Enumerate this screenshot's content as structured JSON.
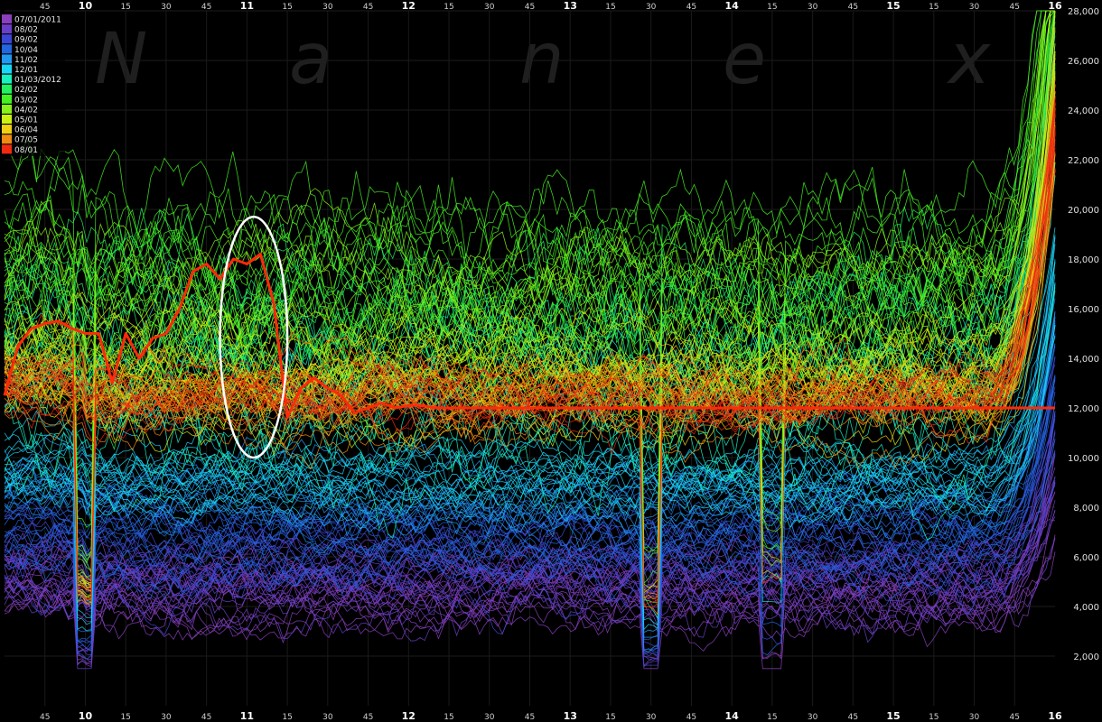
{
  "chart_data": {
    "type": "line",
    "title": "",
    "xlabel": "",
    "ylabel": "",
    "watermark": [
      "N",
      "a",
      "n",
      "e",
      "x"
    ],
    "x_hour_labels": [
      "10",
      "11",
      "12",
      "13",
      "14",
      "15",
      "16"
    ],
    "x_minute_labels": [
      "15",
      "30",
      "45"
    ],
    "x_range": [
      "09:30",
      "16:00"
    ],
    "ylim": [
      0,
      28000
    ],
    "yticks": [
      "2,000",
      "4,000",
      "6,000",
      "8,000",
      "10,000",
      "12,000",
      "14,000",
      "16,000",
      "18,000",
      "20,000",
      "22,000",
      "24,000",
      "26,000",
      "28,000"
    ],
    "grid": true,
    "legend_position": "top-left",
    "legend": [
      {
        "label": "07/01/2011",
        "color": "#8a3fbf"
      },
      {
        "label": "08/02",
        "color": "#6a3fc8"
      },
      {
        "label": "09/02",
        "color": "#3b46d6"
      },
      {
        "label": "10/04",
        "color": "#2266e0"
      },
      {
        "label": "11/02",
        "color": "#1f9af0"
      },
      {
        "label": "12/01",
        "color": "#19d6f5"
      },
      {
        "label": "01/03/2012",
        "color": "#19f0c0"
      },
      {
        "label": "02/02",
        "color": "#22f060"
      },
      {
        "label": "03/02",
        "color": "#44f022"
      },
      {
        "label": "04/02",
        "color": "#88f01a"
      },
      {
        "label": "05/01",
        "color": "#ccf012"
      },
      {
        "label": "06/04",
        "color": "#f0d010"
      },
      {
        "label": "07/05",
        "color": "#f08a10"
      },
      {
        "label": "08/01",
        "color": "#f02a10"
      }
    ],
    "highlight_series": {
      "name": "08/01",
      "color": "#ff2a0a",
      "x": [
        "09:30",
        "09:35",
        "09:40",
        "09:45",
        "09:50",
        "09:55",
        "10:00",
        "10:05",
        "10:10",
        "10:15",
        "10:20",
        "10:25",
        "10:30",
        "10:35",
        "10:40",
        "10:45",
        "10:50",
        "10:55",
        "11:00",
        "11:05",
        "11:10",
        "11:15",
        "11:20",
        "11:25",
        "11:30",
        "11:35",
        "11:40",
        "11:45",
        "11:50",
        "11:55",
        "12:00",
        "12:05",
        "12:10",
        "16:00"
      ],
      "values": [
        12500,
        14500,
        15200,
        15400,
        15500,
        15200,
        15000,
        15000,
        13000,
        15000,
        14000,
        14800,
        15000,
        16000,
        17500,
        17800,
        17200,
        18000,
        17800,
        18200,
        16200,
        11600,
        12800,
        13200,
        12800,
        12500,
        11800,
        12000,
        12200,
        12000,
        12100,
        12100,
        12000,
        12000
      ]
    },
    "annotation": {
      "shape": "ellipse",
      "color": "#ffffff",
      "x_range": [
        "10:50",
        "11:15"
      ],
      "y_range": [
        10000,
        19700
      ]
    }
  }
}
